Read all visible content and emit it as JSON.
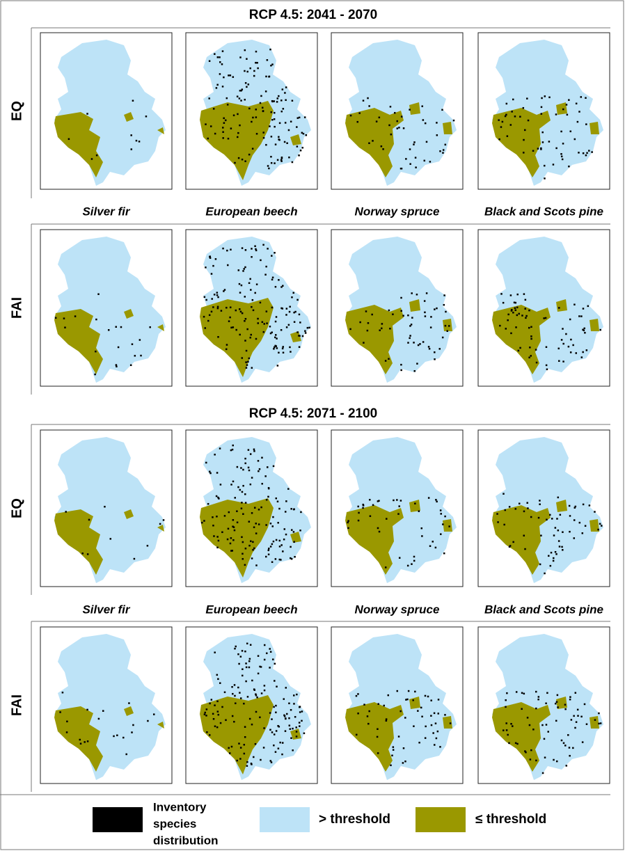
{
  "sections": [
    {
      "title": "RCP 4.5: 2041 - 2070",
      "rows": [
        "EQ",
        "FAI"
      ],
      "species": [
        "Silver fir",
        "European beech",
        "Norway spruce",
        "Black and Scots pine"
      ]
    },
    {
      "title": "RCP 4.5: 2071 - 2100",
      "rows": [
        "EQ",
        "FAI"
      ],
      "species": [
        "Silver fir",
        "European beech",
        "Norway spruce",
        "Black and Scots pine"
      ]
    }
  ],
  "legend": {
    "inventory": [
      "Inventory",
      "species",
      "distribution"
    ],
    "above": "> threshold",
    "below": "≤ threshold"
  }
}
